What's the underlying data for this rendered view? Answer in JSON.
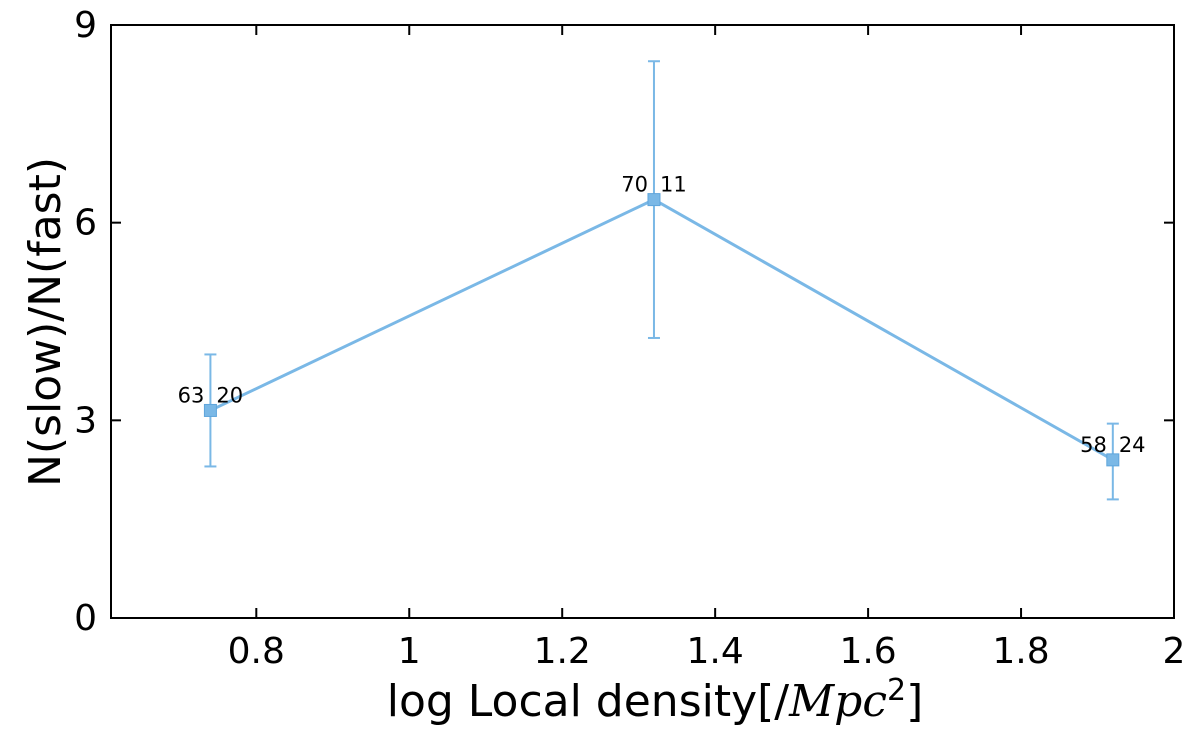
{
  "chart_data": {
    "type": "line",
    "xlabel_prefix": "log Local density[/",
    "xlabel_math": "Mpc",
    "xlabel_sup": "2",
    "xlabel_suffix": "]",
    "ylabel": "N(slow)/N(fast)",
    "xlim": [
      0.61,
      2.0
    ],
    "ylim": [
      0,
      9
    ],
    "xticks": [
      0.8,
      1.0,
      1.2,
      1.4,
      1.6,
      1.8,
      2.0
    ],
    "xtick_labels": [
      "0.8",
      "1",
      "1.2",
      "1.4",
      "1.6",
      "1.8",
      "2"
    ],
    "yticks": [
      0,
      3,
      6,
      9
    ],
    "ytick_labels": [
      "0",
      "3",
      "6",
      "9"
    ],
    "grid": false,
    "color": "#7ab8e6",
    "series": [
      {
        "points": [
          {
            "x": 0.74,
            "y": 3.15,
            "err_low": 2.3,
            "err_high": 4.0,
            "label_left": "63",
            "label_right": "20"
          },
          {
            "x": 1.32,
            "y": 6.35,
            "err_low": 4.25,
            "err_high": 8.45,
            "label_left": "70",
            "label_right": "11"
          },
          {
            "x": 1.92,
            "y": 2.4,
            "err_low": 1.8,
            "err_high": 2.95,
            "label_left": "58",
            "label_right": "24"
          }
        ]
      }
    ]
  }
}
